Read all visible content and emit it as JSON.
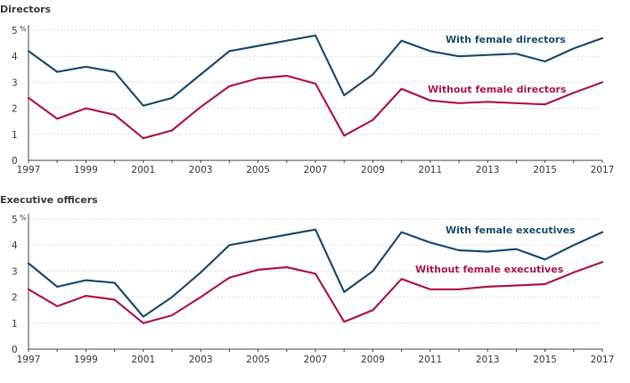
{
  "chart_data": [
    {
      "type": "line",
      "title": "Directors",
      "x": [
        1997,
        1998,
        1999,
        2000,
        2001,
        2002,
        2003,
        2004,
        2005,
        2006,
        2007,
        2008,
        2009,
        2010,
        2011,
        2012,
        2013,
        2014,
        2015,
        2016,
        2017
      ],
      "x_tick_labels": [
        "1997",
        "1999",
        "2001",
        "2003",
        "2005",
        "2007",
        "2009",
        "2011",
        "2013",
        "2015",
        "2017"
      ],
      "y_tick_labels": [
        "0",
        "1",
        "2",
        "3",
        "4",
        "5"
      ],
      "y_unit": "%",
      "ylim": [
        0,
        5
      ],
      "grid": true,
      "series": [
        {
          "name": "With female directors",
          "color": "#1f4e6e",
          "values": [
            4.2,
            3.4,
            3.6,
            3.4,
            2.1,
            2.4,
            3.3,
            4.2,
            4.4,
            4.6,
            4.8,
            2.5,
            3.3,
            4.6,
            4.2,
            4.0,
            4.05,
            4.1,
            3.8,
            4.3,
            4.7
          ]
        },
        {
          "name": "Without female directors",
          "color": "#b0184f",
          "values": [
            2.4,
            1.6,
            2.0,
            1.75,
            0.85,
            1.15,
            2.05,
            2.85,
            3.15,
            3.25,
            2.95,
            0.95,
            1.55,
            2.75,
            2.3,
            2.2,
            2.25,
            2.2,
            2.15,
            2.6,
            3.0
          ]
        }
      ]
    },
    {
      "type": "line",
      "title": "Executive officers",
      "x": [
        1997,
        1998,
        1999,
        2000,
        2001,
        2002,
        2003,
        2004,
        2005,
        2006,
        2007,
        2008,
        2009,
        2010,
        2011,
        2012,
        2013,
        2014,
        2015,
        2016,
        2017
      ],
      "x_tick_labels": [
        "1997",
        "1999",
        "2001",
        "2003",
        "2005",
        "2007",
        "2009",
        "2011",
        "2013",
        "2015",
        "2017"
      ],
      "y_tick_labels": [
        "0",
        "1",
        "2",
        "3",
        "4",
        "5"
      ],
      "y_unit": "%",
      "ylim": [
        0,
        5
      ],
      "grid": true,
      "series": [
        {
          "name": "With female executives",
          "color": "#1f4e6e",
          "values": [
            3.3,
            2.4,
            2.65,
            2.55,
            1.25,
            2.0,
            2.95,
            4.0,
            4.2,
            4.4,
            4.6,
            2.2,
            3.0,
            4.5,
            4.1,
            3.8,
            3.75,
            3.85,
            3.45,
            4.0,
            4.5
          ]
        },
        {
          "name": "Without female executives",
          "color": "#b0184f",
          "values": [
            2.3,
            1.65,
            2.05,
            1.9,
            1.0,
            1.3,
            2.0,
            2.75,
            3.05,
            3.15,
            2.9,
            1.05,
            1.5,
            2.7,
            2.3,
            2.3,
            2.4,
            2.45,
            2.5,
            2.95,
            3.35
          ]
        }
      ]
    }
  ]
}
